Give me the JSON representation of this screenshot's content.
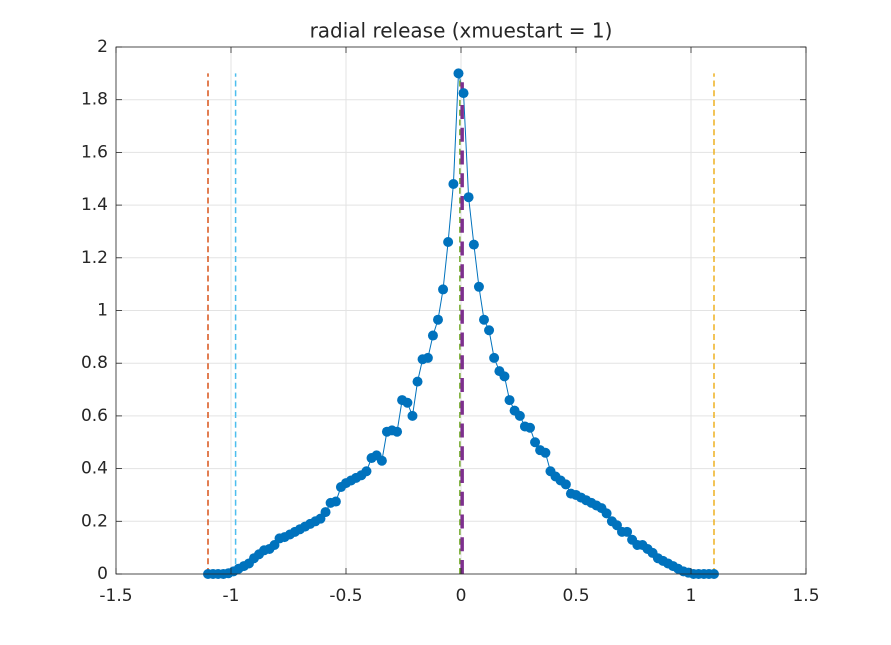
{
  "chart_data": {
    "type": "line",
    "title": "radial release (xmuestart = 1)",
    "xlim": [
      -1.5,
      1.5
    ],
    "xticks": [
      -1.5,
      -1,
      -0.5,
      0,
      0.5,
      1,
      1.5
    ],
    "ylim": [
      0,
      2
    ],
    "yticks": [
      0,
      0.2,
      0.4,
      0.6,
      0.8,
      1,
      1.2,
      1.4,
      1.6,
      1.8,
      2
    ],
    "grid": true,
    "series": [
      {
        "color": "#0072bd",
        "marker": "circle",
        "line_style": "solid",
        "x": [
          -1.1,
          -1.078,
          -1.056,
          -1.033,
          -1.011,
          -0.989,
          -0.967,
          -0.944,
          -0.922,
          -0.9,
          -0.878,
          -0.856,
          -0.833,
          -0.811,
          -0.789,
          -0.767,
          -0.744,
          -0.722,
          -0.7,
          -0.678,
          -0.656,
          -0.633,
          -0.611,
          -0.589,
          -0.567,
          -0.544,
          -0.522,
          -0.5,
          -0.478,
          -0.456,
          -0.433,
          -0.411,
          -0.389,
          -0.367,
          -0.344,
          -0.322,
          -0.3,
          -0.278,
          -0.256,
          -0.233,
          -0.211,
          -0.189,
          -0.167,
          -0.144,
          -0.122,
          -0.1,
          -0.078,
          -0.056,
          -0.033,
          -0.011,
          0.011,
          0.033,
          0.056,
          0.078,
          0.1,
          0.122,
          0.144,
          0.167,
          0.189,
          0.211,
          0.233,
          0.256,
          0.278,
          0.3,
          0.322,
          0.344,
          0.367,
          0.389,
          0.411,
          0.433,
          0.456,
          0.478,
          0.5,
          0.522,
          0.544,
          0.567,
          0.589,
          0.611,
          0.633,
          0.656,
          0.678,
          0.7,
          0.722,
          0.744,
          0.767,
          0.789,
          0.811,
          0.833,
          0.856,
          0.878,
          0.9,
          0.922,
          0.944,
          0.967,
          0.989,
          1.011,
          1.033,
          1.056,
          1.078,
          1.1
        ],
        "values": [
          0,
          0,
          0,
          0,
          0.003,
          0.01,
          0.02,
          0.03,
          0.04,
          0.06,
          0.075,
          0.09,
          0.095,
          0.11,
          0.135,
          0.14,
          0.15,
          0.16,
          0.17,
          0.18,
          0.19,
          0.2,
          0.21,
          0.235,
          0.27,
          0.275,
          0.33,
          0.345,
          0.355,
          0.365,
          0.375,
          0.39,
          0.44,
          0.45,
          0.43,
          0.54,
          0.545,
          0.54,
          0.66,
          0.65,
          0.6,
          0.73,
          0.815,
          0.82,
          0.905,
          0.965,
          1.08,
          1.26,
          1.48,
          1.9,
          1.825,
          1.43,
          1.25,
          1.09,
          0.965,
          0.925,
          0.82,
          0.77,
          0.75,
          0.66,
          0.62,
          0.6,
          0.56,
          0.555,
          0.5,
          0.47,
          0.46,
          0.39,
          0.37,
          0.355,
          0.34,
          0.305,
          0.3,
          0.29,
          0.28,
          0.27,
          0.26,
          0.25,
          0.23,
          0.2,
          0.185,
          0.16,
          0.16,
          0.13,
          0.11,
          0.11,
          0.095,
          0.08,
          0.06,
          0.05,
          0.04,
          0.03,
          0.02,
          0.01,
          0.005,
          0,
          0,
          0,
          0,
          0
        ]
      },
      {
        "color": "#d95319",
        "line_style": "dashed",
        "line_width": 1.5,
        "x": [
          -1.1,
          -1.1
        ],
        "values": [
          0,
          1.9
        ]
      },
      {
        "color": "#edb120",
        "line_style": "dashed",
        "line_width": 1.5,
        "x": [
          1.1,
          1.1
        ],
        "values": [
          0,
          1.9
        ]
      },
      {
        "color": "#4dbeee",
        "line_style": "dashed",
        "line_width": 1.5,
        "x": [
          -0.98,
          -0.98
        ],
        "values": [
          0,
          1.9
        ]
      },
      {
        "color": "#77ac30",
        "line_style": "dashed",
        "line_width": 1.5,
        "x": [
          -0.005,
          -0.005
        ],
        "values": [
          0,
          1.9
        ]
      },
      {
        "color": "#7e2f8e",
        "line_style": "dashed",
        "line_width": 3.5,
        "x": [
          0.005,
          0.005
        ],
        "values": [
          0,
          1.9
        ]
      }
    ]
  }
}
